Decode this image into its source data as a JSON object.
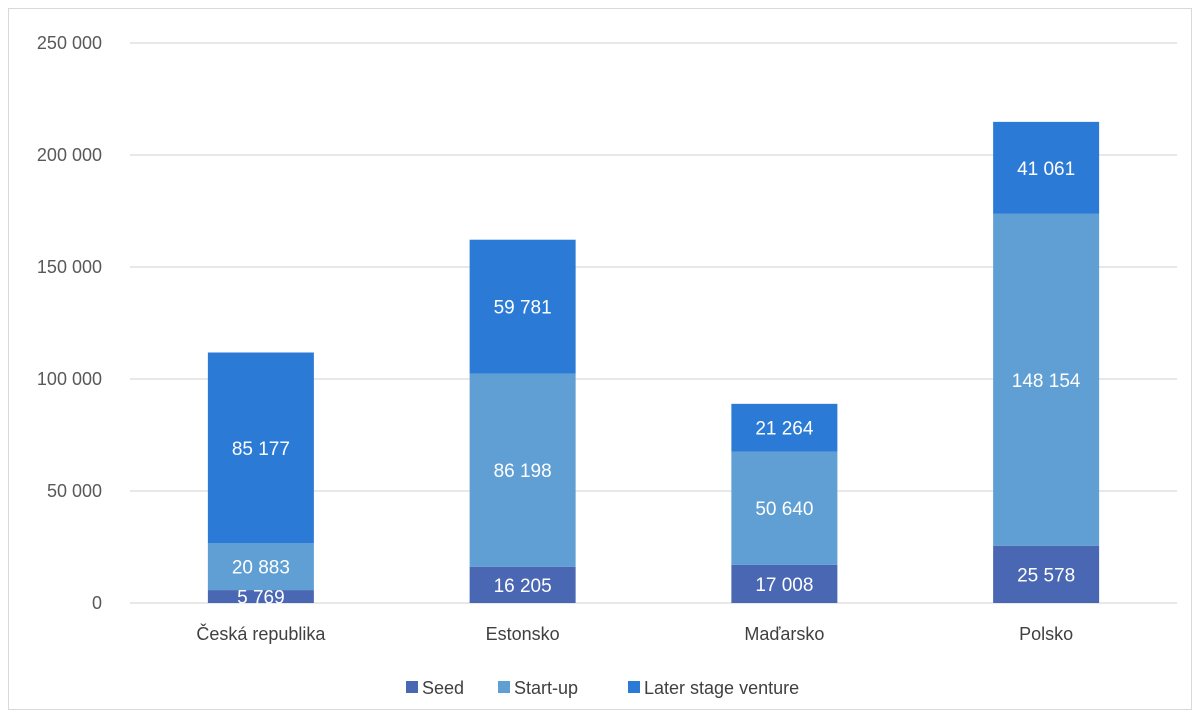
{
  "chart_data": {
    "type": "bar",
    "stacked": true,
    "categories": [
      "Česká republika",
      "Estonsko",
      "Maďarsko",
      "Polsko"
    ],
    "series": [
      {
        "name": "Seed",
        "values": [
          5769,
          16205,
          17008,
          25578
        ],
        "labels": [
          "5 769",
          "16 205",
          "17 008",
          "25 578"
        ],
        "color": "#4a67b3"
      },
      {
        "name": "Start-up",
        "values": [
          20883,
          86198,
          50640,
          148154
        ],
        "labels": [
          "20 883",
          "86 198",
          "50 640",
          "148 154"
        ],
        "color": "#5f9fd4"
      },
      {
        "name": "Later stage venture",
        "values": [
          85177,
          59781,
          21264,
          41061
        ],
        "labels": [
          "85 177",
          "59 781",
          "21 264",
          "41 061"
        ],
        "color": "#2b7bd6"
      }
    ],
    "ylim": [
      0,
      250000
    ],
    "yticks": [
      0,
      50000,
      100000,
      150000,
      200000,
      250000
    ],
    "ytick_labels": [
      "0",
      "50 000",
      "100 000",
      "150 000",
      "200 000",
      "250 000"
    ],
    "grid": true,
    "legend_position": "bottom",
    "gridline_color": "#d9d9d9"
  }
}
